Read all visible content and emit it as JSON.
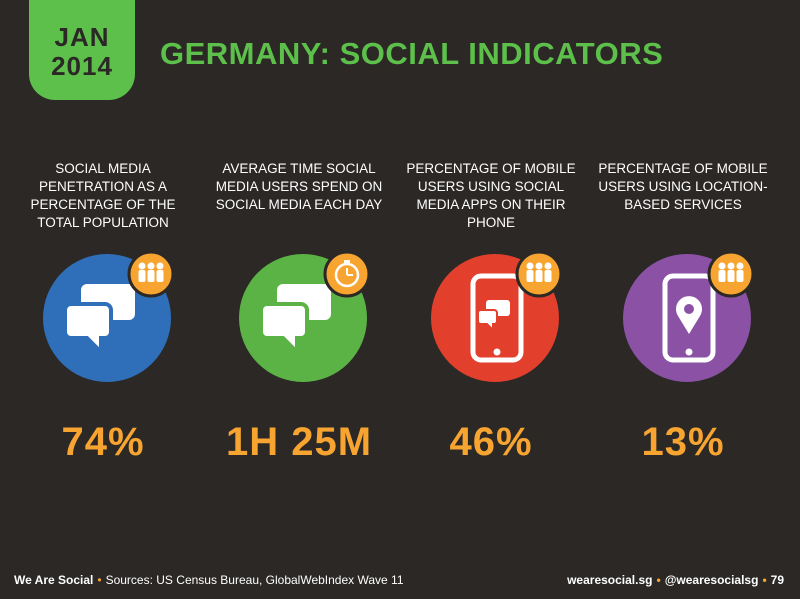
{
  "date": {
    "month": "JAN",
    "year": "2014"
  },
  "title": "GERMANY: SOCIAL INDICATORS",
  "indicators": [
    {
      "label": "SOCIAL MEDIA PENETRATION AS A PERCENTAGE OF THE TOTAL POPULATION",
      "value": "74%",
      "icon": "chat-bubbles-icon",
      "color": "#2f6fb9"
    },
    {
      "label": "AVERAGE TIME SOCIAL MEDIA USERS SPEND ON SOCIAL MEDIA EACH DAY",
      "value": "1H 25M",
      "icon": "chat-bubbles-icon",
      "color": "#5cb345"
    },
    {
      "label": "PERCENTAGE OF MOBILE USERS USING SOCIAL MEDIA APPS ON THEIR PHONE",
      "value": "46%",
      "icon": "phone-chat-icon",
      "color": "#e2402c"
    },
    {
      "label": "PERCENTAGE OF MOBILE USERS USING LOCATION-BASED SERVICES",
      "value": "13%",
      "icon": "phone-location-icon",
      "color": "#8a51a5"
    }
  ],
  "colors": {
    "accent": "#f7a431",
    "green": "#5cc04a",
    "background": "#2b2826"
  },
  "footer": {
    "brand": "We Are Social",
    "sources": "Sources: US Census Bureau, GlobalWebIndex Wave 11",
    "site": "wearesocial.sg",
    "handle": "@wearesocialsg",
    "page": "79"
  }
}
